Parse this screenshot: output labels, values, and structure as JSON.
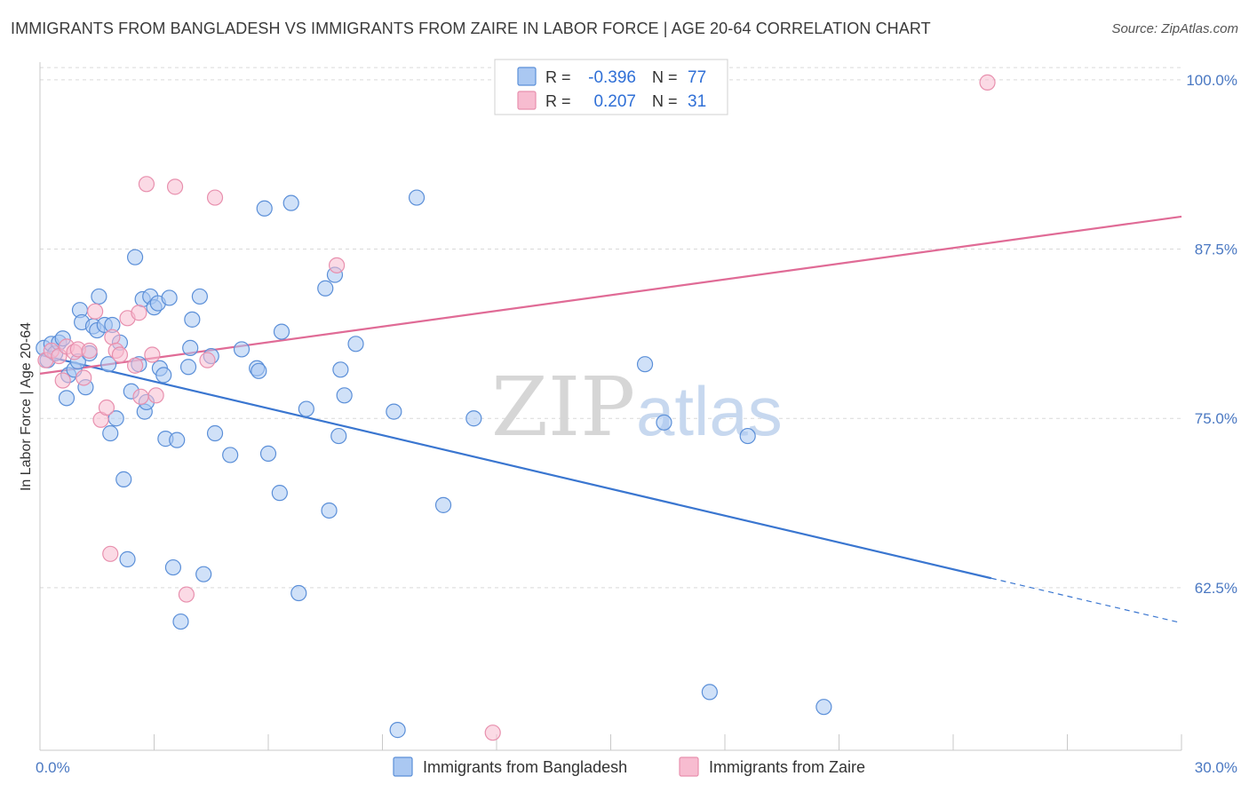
{
  "title": "IMMIGRANTS FROM BANGLADESH VS IMMIGRANTS FROM ZAIRE IN LABOR FORCE | AGE 20-64 CORRELATION CHART",
  "source": "Source: ZipAtlas.com",
  "watermark": {
    "zip": "ZIP",
    "atlas": "atlas"
  },
  "colors": {
    "blue_fill": "#aac8f2",
    "blue_stroke": "#5b8fd8",
    "blue_line": "#3a76d0",
    "pink_fill": "#f7bcd0",
    "pink_stroke": "#e890ae",
    "pink_line": "#e06b96",
    "grid": "#d9d9d9",
    "axis_text": "#4a78c2"
  },
  "legend": {
    "rows": [
      {
        "r_label": "R =",
        "r_value": "-0.396",
        "n_label": "N =",
        "n_value": "77",
        "series": "bangladesh"
      },
      {
        "r_label": "R =",
        "r_value": "0.207",
        "n_label": "N =",
        "n_value": "31",
        "series": "zaire"
      }
    ]
  },
  "chart_data": {
    "type": "scatter",
    "title": "IMMIGRANTS FROM BANGLADESH VS IMMIGRANTS FROM ZAIRE IN LABOR FORCE | AGE 20-64 CORRELATION CHART",
    "xlabel": "",
    "ylabel": "In Labor Force | Age 20-64",
    "xlim": [
      0,
      30
    ],
    "ylim": [
      50.5,
      101.3
    ],
    "x_tick_labels": [
      {
        "value": 0,
        "label": "0.0%"
      },
      {
        "value": 30,
        "label": "30.0%"
      }
    ],
    "y_tick_labels": [
      {
        "value": 100,
        "label": "100.0%"
      },
      {
        "value": 87.5,
        "label": "87.5%"
      },
      {
        "value": 75,
        "label": "75.0%"
      },
      {
        "value": 62.5,
        "label": "62.5%"
      }
    ],
    "series": [
      {
        "name": "Immigrants from Bangladesh",
        "key": "bangladesh",
        "r": -0.396,
        "n": 77,
        "trend": {
          "x0": 0.0,
          "y0": 79.7,
          "x1": 25.0,
          "y1": 63.2,
          "dash_to_x": 30.0,
          "dash_to_y": 59.9
        },
        "points": [
          [
            0.1,
            80.2
          ],
          [
            0.2,
            79.3
          ],
          [
            0.3,
            80.5
          ],
          [
            0.4,
            79.8
          ],
          [
            0.5,
            80.6
          ],
          [
            0.6,
            80.9
          ],
          [
            0.7,
            76.5
          ],
          [
            0.75,
            78.2
          ],
          [
            0.9,
            78.6
          ],
          [
            1.0,
            79.2
          ],
          [
            1.05,
            83.0
          ],
          [
            1.1,
            82.1
          ],
          [
            1.2,
            77.3
          ],
          [
            1.3,
            79.8
          ],
          [
            1.4,
            81.8
          ],
          [
            1.5,
            81.5
          ],
          [
            1.55,
            84.0
          ],
          [
            1.7,
            81.9
          ],
          [
            1.8,
            79.0
          ],
          [
            1.85,
            73.9
          ],
          [
            1.9,
            81.9
          ],
          [
            2.0,
            75.0
          ],
          [
            2.1,
            80.6
          ],
          [
            2.2,
            70.5
          ],
          [
            2.3,
            64.6
          ],
          [
            2.4,
            77.0
          ],
          [
            2.5,
            86.9
          ],
          [
            2.6,
            79.0
          ],
          [
            2.7,
            83.8
          ],
          [
            2.75,
            75.5
          ],
          [
            2.8,
            76.2
          ],
          [
            2.9,
            84.0
          ],
          [
            3.0,
            83.2
          ],
          [
            3.1,
            83.5
          ],
          [
            3.15,
            78.7
          ],
          [
            3.25,
            78.2
          ],
          [
            3.3,
            73.5
          ],
          [
            3.4,
            83.9
          ],
          [
            3.5,
            64.0
          ],
          [
            3.6,
            73.4
          ],
          [
            3.7,
            60.0
          ],
          [
            3.9,
            78.8
          ],
          [
            3.95,
            80.2
          ],
          [
            4.0,
            82.3
          ],
          [
            4.2,
            84.0
          ],
          [
            4.3,
            63.5
          ],
          [
            4.5,
            79.6
          ],
          [
            4.6,
            73.9
          ],
          [
            5.0,
            72.3
          ],
          [
            5.3,
            80.1
          ],
          [
            5.7,
            78.7
          ],
          [
            5.75,
            78.5
          ],
          [
            5.9,
            90.5
          ],
          [
            6.0,
            72.4
          ],
          [
            6.3,
            69.5
          ],
          [
            6.35,
            81.4
          ],
          [
            6.6,
            90.9
          ],
          [
            6.8,
            62.1
          ],
          [
            7.0,
            75.7
          ],
          [
            7.5,
            84.6
          ],
          [
            7.6,
            68.2
          ],
          [
            7.75,
            85.6
          ],
          [
            7.85,
            73.7
          ],
          [
            7.9,
            78.6
          ],
          [
            8.0,
            76.7
          ],
          [
            8.3,
            80.5
          ],
          [
            9.3,
            75.5
          ],
          [
            9.4,
            52.0
          ],
          [
            9.9,
            91.3
          ],
          [
            10.6,
            68.6
          ],
          [
            11.4,
            75.0
          ],
          [
            15.9,
            79.0
          ],
          [
            16.4,
            74.7
          ],
          [
            17.6,
            54.8
          ],
          [
            18.6,
            73.7
          ],
          [
            20.6,
            53.7
          ]
        ]
      },
      {
        "name": "Immigrants from Zaire",
        "key": "zaire",
        "r": 0.207,
        "n": 31,
        "trend": {
          "x0": 0.0,
          "y0": 78.3,
          "x1": 30.0,
          "y1": 89.9
        },
        "points": [
          [
            0.15,
            79.3
          ],
          [
            0.3,
            80.0
          ],
          [
            0.5,
            79.6
          ],
          [
            0.6,
            77.8
          ],
          [
            0.7,
            80.3
          ],
          [
            0.9,
            79.9
          ],
          [
            1.0,
            80.1
          ],
          [
            1.15,
            78.0
          ],
          [
            1.3,
            80.0
          ],
          [
            1.45,
            82.9
          ],
          [
            1.6,
            74.9
          ],
          [
            1.75,
            75.8
          ],
          [
            1.85,
            65.0
          ],
          [
            1.9,
            81.0
          ],
          [
            2.0,
            80.0
          ],
          [
            2.1,
            79.7
          ],
          [
            2.3,
            82.4
          ],
          [
            2.5,
            78.9
          ],
          [
            2.6,
            82.8
          ],
          [
            2.65,
            76.6
          ],
          [
            2.8,
            92.3
          ],
          [
            2.95,
            79.7
          ],
          [
            3.05,
            76.7
          ],
          [
            3.55,
            92.1
          ],
          [
            3.85,
            62.0
          ],
          [
            4.4,
            79.3
          ],
          [
            4.6,
            91.3
          ],
          [
            7.8,
            86.3
          ],
          [
            11.9,
            51.8
          ],
          [
            24.9,
            99.8
          ]
        ]
      }
    ]
  },
  "bottom_legend": [
    {
      "label": "Immigrants from Bangladesh",
      "series": "bangladesh"
    },
    {
      "label": "Immigrants from Zaire",
      "series": "zaire"
    }
  ]
}
